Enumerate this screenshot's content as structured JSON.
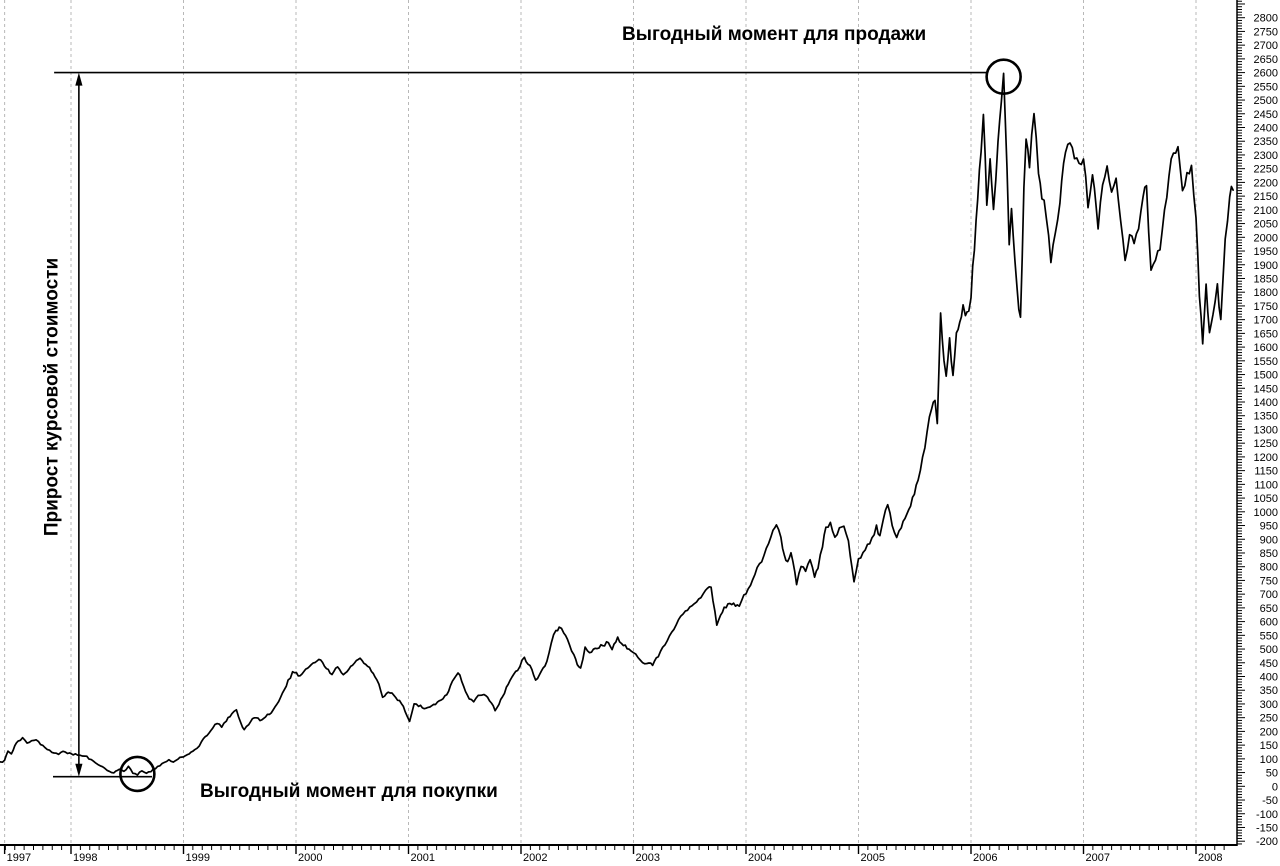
{
  "annotations": {
    "sell_label": "Выгодный момент для продажи",
    "buy_label": "Выгодный момент для покупки",
    "axis_label": "Прирост курсовой стоимости"
  },
  "colors": {
    "line": "#000000",
    "grid": "#b8b8b8",
    "axis": "#000000",
    "background": "#ffffff",
    "text": "#000000"
  },
  "chart_data": {
    "type": "line",
    "title": "",
    "xlabel": "",
    "ylabel": "",
    "grid": "vertical-dashed-yearly",
    "x_range": [
      1997.37,
      2008.33
    ],
    "y_axis": {
      "side": "right",
      "min": -200,
      "max": 2800,
      "label_step": 50,
      "minor_step": 10
    },
    "x_ticks": [
      {
        "label": "1997",
        "year": 1997.41
      },
      {
        "label": "1998",
        "year": 1998
      },
      {
        "label": "1999",
        "year": 1999
      },
      {
        "label": "2000",
        "year": 2000
      },
      {
        "label": "2001",
        "year": 2001
      },
      {
        "label": "2002",
        "year": 2002
      },
      {
        "label": "2003",
        "year": 2003
      },
      {
        "label": "2004",
        "year": 2004
      },
      {
        "label": "2005",
        "year": 2005
      },
      {
        "label": "2006",
        "year": 2006
      },
      {
        "label": "2007",
        "year": 2007
      },
      {
        "label": "2008",
        "year": 2008
      }
    ],
    "x_minor_ticks": "monthly",
    "markers": {
      "sell_level_value": 2600,
      "sell_level_span_years": [
        1997.85,
        2006.14
      ],
      "sell_circle": {
        "year": 2006.29,
        "value": 2585
      },
      "buy_level_value": 35,
      "buy_level_span_years": [
        1997.84,
        1998.72
      ],
      "buy_circle": {
        "year": 1998.59,
        "value": 45
      },
      "arrow_year": 1998.07,
      "arrow_from_value": 35,
      "arrow_to_value": 2600
    },
    "series": {
      "points": [
        [
          1997.37,
          90
        ],
        [
          1997.41,
          95
        ],
        [
          1997.44,
          128
        ],
        [
          1997.47,
          118
        ],
        [
          1997.5,
          148
        ],
        [
          1997.53,
          165
        ],
        [
          1997.57,
          177
        ],
        [
          1997.61,
          158
        ],
        [
          1997.65,
          167
        ],
        [
          1997.69,
          170
        ],
        [
          1997.73,
          152
        ],
        [
          1997.77,
          141
        ],
        [
          1997.81,
          133
        ],
        [
          1997.85,
          122
        ],
        [
          1997.89,
          117
        ],
        [
          1997.93,
          127
        ],
        [
          1997.97,
          119
        ],
        [
          1998.02,
          113
        ],
        [
          1998.08,
          114
        ],
        [
          1998.14,
          111
        ],
        [
          1998.2,
          92
        ],
        [
          1998.26,
          74
        ],
        [
          1998.32,
          58
        ],
        [
          1998.38,
          50
        ],
        [
          1998.43,
          63
        ],
        [
          1998.47,
          55
        ],
        [
          1998.51,
          73
        ],
        [
          1998.55,
          47
        ],
        [
          1998.59,
          40
        ],
        [
          1998.63,
          56
        ],
        [
          1998.67,
          47
        ],
        [
          1998.71,
          52
        ],
        [
          1998.75,
          63
        ],
        [
          1998.79,
          73
        ],
        [
          1998.83,
          86
        ],
        [
          1998.87,
          97
        ],
        [
          1998.91,
          88
        ],
        [
          1998.95,
          98
        ],
        [
          1999.0,
          106
        ],
        [
          1999.05,
          117
        ],
        [
          1999.1,
          134
        ],
        [
          1999.16,
          163
        ],
        [
          1999.21,
          186
        ],
        [
          1999.26,
          211
        ],
        [
          1999.3,
          228
        ],
        [
          1999.34,
          214
        ],
        [
          1999.38,
          236
        ],
        [
          1999.43,
          263
        ],
        [
          1999.47,
          278
        ],
        [
          1999.51,
          231
        ],
        [
          1999.54,
          206
        ],
        [
          1999.58,
          223
        ],
        [
          1999.63,
          248
        ],
        [
          1999.68,
          238
        ],
        [
          1999.73,
          252
        ],
        [
          1999.78,
          267
        ],
        [
          1999.83,
          300
        ],
        [
          1999.88,
          341
        ],
        [
          1999.93,
          390
        ],
        [
          1999.97,
          421
        ],
        [
          2000.02,
          403
        ],
        [
          2000.07,
          419
        ],
        [
          2000.12,
          437
        ],
        [
          2000.17,
          449
        ],
        [
          2000.22,
          459
        ],
        [
          2000.27,
          429
        ],
        [
          2000.32,
          409
        ],
        [
          2000.37,
          433
        ],
        [
          2000.42,
          405
        ],
        [
          2000.47,
          427
        ],
        [
          2000.52,
          447
        ],
        [
          2000.57,
          467
        ],
        [
          2000.62,
          443
        ],
        [
          2000.67,
          416
        ],
        [
          2000.72,
          386
        ],
        [
          2000.77,
          323
        ],
        [
          2000.82,
          343
        ],
        [
          2000.87,
          331
        ],
        [
          2000.92,
          313
        ],
        [
          2000.97,
          272
        ],
        [
          2001.01,
          238
        ],
        [
          2001.05,
          299
        ],
        [
          2001.09,
          289
        ],
        [
          2001.14,
          281
        ],
        [
          2001.19,
          289
        ],
        [
          2001.24,
          297
        ],
        [
          2001.29,
          313
        ],
        [
          2001.34,
          333
        ],
        [
          2001.39,
          383
        ],
        [
          2001.44,
          411
        ],
        [
          2001.49,
          366
        ],
        [
          2001.54,
          319
        ],
        [
          2001.58,
          306
        ],
        [
          2001.62,
          329
        ],
        [
          2001.67,
          333
        ],
        [
          2001.72,
          311
        ],
        [
          2001.77,
          273
        ],
        [
          2001.82,
          316
        ],
        [
          2001.87,
          361
        ],
        [
          2001.92,
          399
        ],
        [
          2001.97,
          423
        ],
        [
          2002.03,
          471
        ],
        [
          2002.08,
          440
        ],
        [
          2002.13,
          387
        ],
        [
          2002.18,
          420
        ],
        [
          2002.23,
          455
        ],
        [
          2002.27,
          523
        ],
        [
          2002.31,
          569
        ],
        [
          2002.34,
          580
        ],
        [
          2002.38,
          558
        ],
        [
          2002.43,
          516
        ],
        [
          2002.47,
          482
        ],
        [
          2002.5,
          442
        ],
        [
          2002.53,
          431
        ],
        [
          2002.57,
          508
        ],
        [
          2002.61,
          486
        ],
        [
          2002.66,
          504
        ],
        [
          2002.71,
          515
        ],
        [
          2002.76,
          526
        ],
        [
          2002.81,
          497
        ],
        [
          2002.86,
          544
        ],
        [
          2002.91,
          512
        ],
        [
          2002.96,
          500
        ],
        [
          2003.0,
          489
        ],
        [
          2003.06,
          462
        ],
        [
          2003.12,
          447
        ],
        [
          2003.17,
          438
        ],
        [
          2003.22,
          470
        ],
        [
          2003.28,
          515
        ],
        [
          2003.34,
          562
        ],
        [
          2003.4,
          607
        ],
        [
          2003.46,
          637
        ],
        [
          2003.52,
          657
        ],
        [
          2003.58,
          681
        ],
        [
          2003.64,
          714
        ],
        [
          2003.69,
          727
        ],
        [
          2003.74,
          585
        ],
        [
          2003.79,
          634
        ],
        [
          2003.84,
          664
        ],
        [
          2003.89,
          668
        ],
        [
          2003.94,
          653
        ],
        [
          2004.0,
          701
        ],
        [
          2004.06,
          757
        ],
        [
          2004.12,
          812
        ],
        [
          2004.18,
          867
        ],
        [
          2004.24,
          930
        ],
        [
          2004.27,
          952
        ],
        [
          2004.31,
          908
        ],
        [
          2004.34,
          845
        ],
        [
          2004.37,
          820
        ],
        [
          2004.4,
          850
        ],
        [
          2004.45,
          733
        ],
        [
          2004.49,
          799
        ],
        [
          2004.53,
          781
        ],
        [
          2004.57,
          824
        ],
        [
          2004.61,
          759
        ],
        [
          2004.64,
          790
        ],
        [
          2004.68,
          868
        ],
        [
          2004.71,
          945
        ],
        [
          2004.75,
          959
        ],
        [
          2004.79,
          905
        ],
        [
          2004.83,
          941
        ],
        [
          2004.87,
          945
        ],
        [
          2004.91,
          897
        ],
        [
          2004.96,
          744
        ],
        [
          2005.0,
          832
        ],
        [
          2005.04,
          850
        ],
        [
          2005.08,
          885
        ],
        [
          2005.12,
          906
        ],
        [
          2005.16,
          952
        ],
        [
          2005.19,
          912
        ],
        [
          2005.22,
          968
        ],
        [
          2005.26,
          1025
        ],
        [
          2005.3,
          950
        ],
        [
          2005.34,
          906
        ],
        [
          2005.38,
          940
        ],
        [
          2005.43,
          991
        ],
        [
          2005.48,
          1056
        ],
        [
          2005.53,
          1118
        ],
        [
          2005.57,
          1205
        ],
        [
          2005.61,
          1290
        ],
        [
          2005.65,
          1371
        ],
        [
          2005.68,
          1400
        ],
        [
          2005.7,
          1323
        ],
        [
          2005.73,
          1730
        ],
        [
          2005.76,
          1553
        ],
        [
          2005.78,
          1499
        ],
        [
          2005.81,
          1637
        ],
        [
          2005.84,
          1506
        ],
        [
          2005.87,
          1655
        ],
        [
          2005.9,
          1699
        ],
        [
          2005.93,
          1753
        ],
        [
          2005.95,
          1710
        ],
        [
          2005.98,
          1727
        ],
        [
          2006.0,
          1771
        ],
        [
          2006.03,
          1950
        ],
        [
          2006.06,
          2130
        ],
        [
          2006.09,
          2300
        ],
        [
          2006.11,
          2438
        ],
        [
          2006.14,
          2115
        ],
        [
          2006.17,
          2282
        ],
        [
          2006.2,
          2098
        ],
        [
          2006.24,
          2350
        ],
        [
          2006.27,
          2500
        ],
        [
          2006.29,
          2600
        ],
        [
          2006.32,
          2246
        ],
        [
          2006.34,
          1972
        ],
        [
          2006.36,
          2111
        ],
        [
          2006.39,
          1918
        ],
        [
          2006.41,
          1820
        ],
        [
          2006.44,
          1715
        ],
        [
          2006.47,
          2183
        ],
        [
          2006.49,
          2355
        ],
        [
          2006.52,
          2246
        ],
        [
          2006.56,
          2446
        ],
        [
          2006.6,
          2221
        ],
        [
          2006.63,
          2130
        ],
        [
          2006.67,
          2064
        ],
        [
          2006.71,
          1900
        ],
        [
          2006.75,
          2016
        ],
        [
          2006.79,
          2125
        ],
        [
          2006.84,
          2308
        ],
        [
          2006.88,
          2337
        ],
        [
          2006.92,
          2280
        ],
        [
          2006.96,
          2262
        ],
        [
          2007.0,
          2282
        ],
        [
          2007.04,
          2108
        ],
        [
          2007.08,
          2225
        ],
        [
          2007.13,
          2030
        ],
        [
          2007.17,
          2180
        ],
        [
          2007.21,
          2257
        ],
        [
          2007.25,
          2165
        ],
        [
          2007.29,
          2215
        ],
        [
          2007.33,
          2060
        ],
        [
          2007.37,
          1910
        ],
        [
          2007.41,
          2015
        ],
        [
          2007.45,
          1982
        ],
        [
          2007.49,
          2032
        ],
        [
          2007.53,
          2150
        ],
        [
          2007.56,
          2190
        ],
        [
          2007.6,
          1884
        ],
        [
          2007.64,
          1922
        ],
        [
          2007.68,
          1958
        ],
        [
          2007.72,
          2100
        ],
        [
          2007.76,
          2222
        ],
        [
          2007.8,
          2300
        ],
        [
          2007.84,
          2337
        ],
        [
          2007.88,
          2175
        ],
        [
          2007.92,
          2240
        ],
        [
          2007.96,
          2272
        ],
        [
          2008.0,
          2072
        ],
        [
          2008.03,
          1780
        ],
        [
          2008.06,
          1610
        ],
        [
          2008.09,
          1835
        ],
        [
          2008.12,
          1655
        ],
        [
          2008.15,
          1712
        ],
        [
          2008.19,
          1835
        ],
        [
          2008.22,
          1705
        ],
        [
          2008.26,
          1988
        ],
        [
          2008.3,
          2145
        ],
        [
          2008.33,
          2172
        ]
      ]
    }
  }
}
